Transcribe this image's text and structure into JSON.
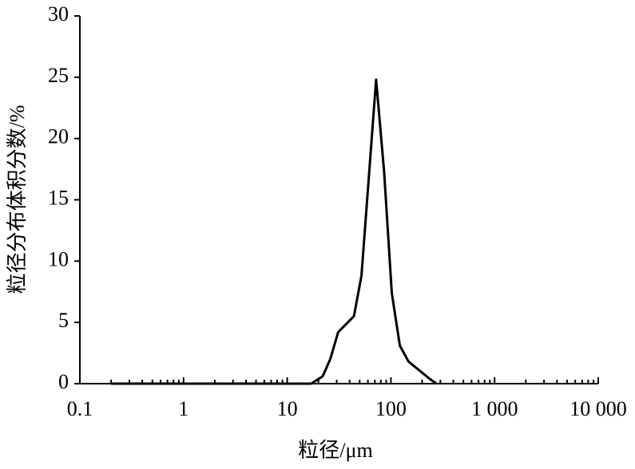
{
  "chart_data": {
    "type": "line",
    "x_label": "粒径/μm",
    "y_label": "粒径分布体积分数/%",
    "log_x": true,
    "xlim": [
      0.1,
      10000
    ],
    "xticks": [
      0.1,
      1,
      10,
      100,
      {
        "value": 1000,
        "label": "1 000"
      },
      {
        "value": 10000,
        "label": "10 000"
      }
    ],
    "ylim": [
      0,
      30
    ],
    "yticks": [
      0,
      5,
      10,
      15,
      20,
      25,
      30
    ],
    "series": [
      {
        "color": "#000000",
        "x": [
          0.2,
          17,
          22,
          26,
          31,
          44,
          52,
          72,
          86,
          102,
          122,
          148,
          236,
          275
        ],
        "values": [
          0,
          0,
          0.6,
          2,
          4.2,
          5.5,
          8.8,
          24.8,
          17.3,
          7.4,
          3.1,
          1.8,
          0.4,
          0
        ]
      }
    ]
  }
}
